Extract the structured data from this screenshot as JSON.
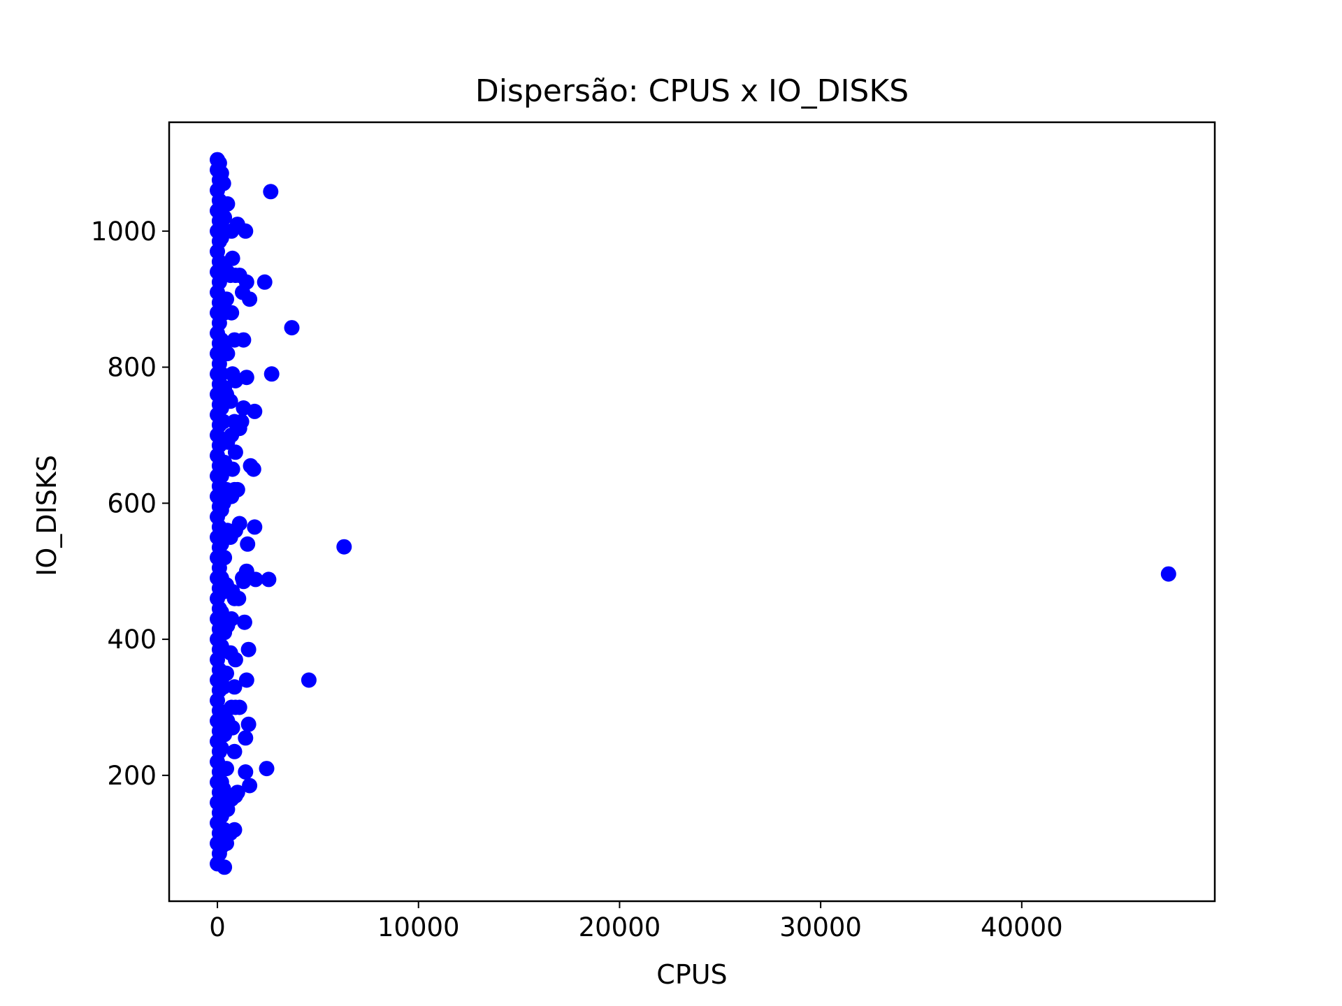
{
  "chart_data": {
    "type": "scatter",
    "title": "Dispersão: CPUS x IO_DISKS",
    "xlabel": "CPUS",
    "ylabel": "IO_DISKS",
    "xlim": [
      -2400,
      49600
    ],
    "ylim": [
      15,
      1160
    ],
    "xticks": [
      0,
      10000,
      20000,
      30000,
      40000
    ],
    "yticks": [
      200,
      400,
      600,
      800,
      1000
    ],
    "grid": false,
    "legend": "none",
    "colors": {
      "marker": "#0000ff",
      "axes": "#000000",
      "background": "#ffffff"
    },
    "series": [
      {
        "points": [
          [
            0,
            70
          ],
          [
            0,
            100
          ],
          [
            0,
            130
          ],
          [
            0,
            160
          ],
          [
            0,
            190
          ],
          [
            0,
            220
          ],
          [
            0,
            250
          ],
          [
            0,
            280
          ],
          [
            0,
            310
          ],
          [
            0,
            340
          ],
          [
            0,
            370
          ],
          [
            0,
            400
          ],
          [
            0,
            430
          ],
          [
            0,
            460
          ],
          [
            0,
            490
          ],
          [
            0,
            520
          ],
          [
            0,
            550
          ],
          [
            0,
            580
          ],
          [
            0,
            610
          ],
          [
            0,
            640
          ],
          [
            0,
            670
          ],
          [
            0,
            700
          ],
          [
            0,
            730
          ],
          [
            0,
            760
          ],
          [
            0,
            790
          ],
          [
            0,
            820
          ],
          [
            0,
            850
          ],
          [
            0,
            880
          ],
          [
            0,
            910
          ],
          [
            0,
            940
          ],
          [
            0,
            970
          ],
          [
            0,
            1000
          ],
          [
            0,
            1030
          ],
          [
            0,
            1060
          ],
          [
            0,
            1090
          ],
          [
            0,
            1105
          ],
          [
            100,
            85
          ],
          [
            100,
            115
          ],
          [
            100,
            145
          ],
          [
            100,
            175
          ],
          [
            100,
            205
          ],
          [
            100,
            235
          ],
          [
            100,
            265
          ],
          [
            100,
            295
          ],
          [
            100,
            325
          ],
          [
            100,
            355
          ],
          [
            100,
            385
          ],
          [
            100,
            415
          ],
          [
            100,
            445
          ],
          [
            100,
            475
          ],
          [
            100,
            505
          ],
          [
            100,
            535
          ],
          [
            100,
            565
          ],
          [
            100,
            595
          ],
          [
            100,
            625
          ],
          [
            100,
            655
          ],
          [
            100,
            685
          ],
          [
            100,
            715
          ],
          [
            100,
            745
          ],
          [
            100,
            775
          ],
          [
            100,
            805
          ],
          [
            100,
            835
          ],
          [
            100,
            865
          ],
          [
            100,
            895
          ],
          [
            100,
            925
          ],
          [
            100,
            955
          ],
          [
            100,
            985
          ],
          [
            100,
            1015
          ],
          [
            100,
            1045
          ],
          [
            100,
            1075
          ],
          [
            100,
            1100
          ],
          [
            200,
            95
          ],
          [
            200,
            140
          ],
          [
            200,
            190
          ],
          [
            200,
            240
          ],
          [
            200,
            290
          ],
          [
            200,
            340
          ],
          [
            200,
            390
          ],
          [
            200,
            440
          ],
          [
            200,
            490
          ],
          [
            200,
            540
          ],
          [
            200,
            590
          ],
          [
            200,
            640
          ],
          [
            200,
            690
          ],
          [
            200,
            740
          ],
          [
            200,
            790
          ],
          [
            200,
            840
          ],
          [
            200,
            890
          ],
          [
            200,
            940
          ],
          [
            200,
            990
          ],
          [
            200,
            1040
          ],
          [
            200,
            1085
          ],
          [
            350,
            65
          ],
          [
            350,
            120
          ],
          [
            300,
            180
          ],
          [
            350,
            260
          ],
          [
            300,
            330
          ],
          [
            350,
            410
          ],
          [
            300,
            470
          ],
          [
            350,
            520
          ],
          [
            300,
            600
          ],
          [
            350,
            660
          ],
          [
            300,
            720
          ],
          [
            350,
            770
          ],
          [
            300,
            830
          ],
          [
            350,
            880
          ],
          [
            300,
            950
          ],
          [
            350,
            1020
          ],
          [
            300,
            1070
          ],
          [
            450,
            100
          ],
          [
            500,
            150
          ],
          [
            450,
            210
          ],
          [
            500,
            280
          ],
          [
            450,
            350
          ],
          [
            500,
            420
          ],
          [
            450,
            480
          ],
          [
            500,
            560
          ],
          [
            450,
            620
          ],
          [
            500,
            690
          ],
          [
            450,
            760
          ],
          [
            500,
            820
          ],
          [
            450,
            900
          ],
          [
            500,
            940
          ],
          [
            450,
            1000
          ],
          [
            500,
            1040
          ],
          [
            650,
            115
          ],
          [
            700,
            165
          ],
          [
            750,
            270
          ],
          [
            700,
            300
          ],
          [
            650,
            380
          ],
          [
            700,
            430
          ],
          [
            750,
            470
          ],
          [
            650,
            550
          ],
          [
            700,
            610
          ],
          [
            750,
            650
          ],
          [
            700,
            700
          ],
          [
            650,
            750
          ],
          [
            750,
            790
          ],
          [
            700,
            880
          ],
          [
            650,
            935
          ],
          [
            750,
            960
          ],
          [
            700,
            1000
          ],
          [
            850,
            120
          ],
          [
            900,
            170
          ],
          [
            850,
            235
          ],
          [
            900,
            300
          ],
          [
            850,
            330
          ],
          [
            900,
            370
          ],
          [
            850,
            460
          ],
          [
            900,
            560
          ],
          [
            850,
            620
          ],
          [
            900,
            675
          ],
          [
            850,
            720
          ],
          [
            900,
            780
          ],
          [
            850,
            840
          ],
          [
            900,
            935
          ],
          [
            1000,
            175
          ],
          [
            1100,
            300
          ],
          [
            1050,
            460
          ],
          [
            1100,
            570
          ],
          [
            1000,
            620
          ],
          [
            1100,
            710
          ],
          [
            1000,
            1010
          ],
          [
            1100,
            935
          ],
          [
            1250,
            910
          ],
          [
            1300,
            840
          ],
          [
            1300,
            740
          ],
          [
            1200,
            720
          ],
          [
            1350,
            425
          ],
          [
            1300,
            485
          ],
          [
            1250,
            490
          ],
          [
            1400,
            205
          ],
          [
            1400,
            255
          ],
          [
            1450,
            340
          ],
          [
            1450,
            500
          ],
          [
            1500,
            540
          ],
          [
            1450,
            785
          ],
          [
            1400,
            1000
          ],
          [
            1450,
            925
          ],
          [
            1600,
            185
          ],
          [
            1550,
            275
          ],
          [
            1550,
            385
          ],
          [
            1600,
            900
          ],
          [
            1650,
            655
          ],
          [
            1800,
            650
          ],
          [
            1850,
            735
          ],
          [
            1850,
            565
          ],
          [
            1900,
            488
          ],
          [
            2350,
            925
          ],
          [
            2450,
            210
          ],
          [
            2550,
            488
          ],
          [
            2650,
            1058
          ],
          [
            2700,
            790
          ],
          [
            3700,
            858
          ],
          [
            4550,
            340
          ],
          [
            6300,
            536
          ],
          [
            47300,
            496
          ]
        ]
      }
    ]
  }
}
